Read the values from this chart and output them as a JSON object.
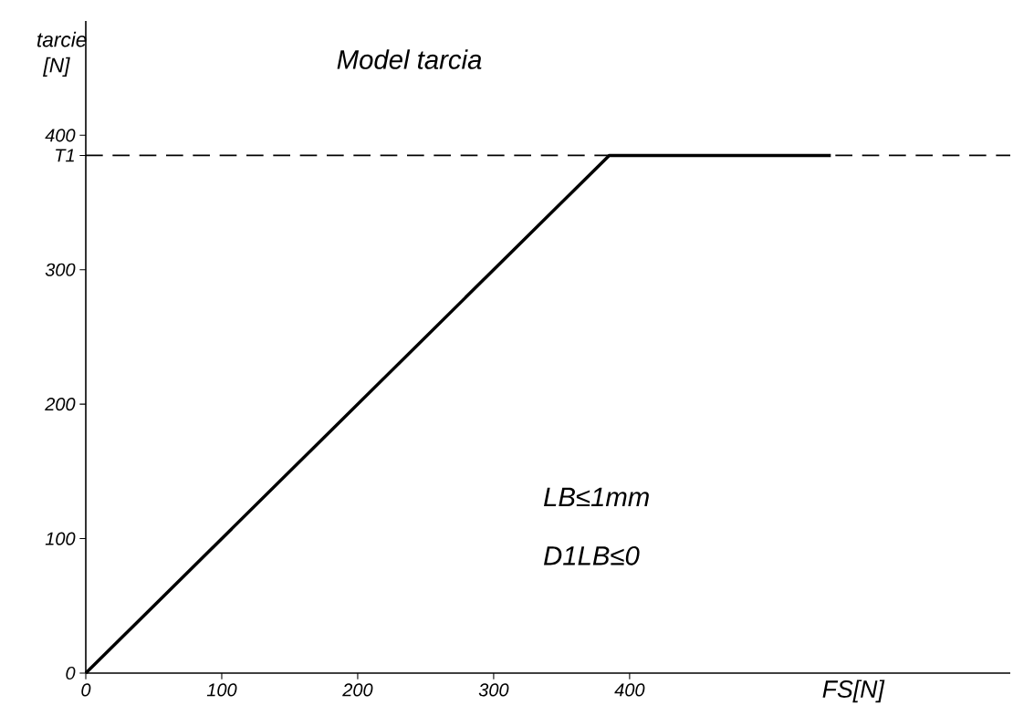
{
  "chart_data": {
    "type": "line",
    "title": "Model tarcia",
    "xlabel": "FS[N]",
    "ylabel": "tarcie [N]",
    "x": [
      0,
      385,
      548
    ],
    "series": [
      {
        "color": "#000000",
        "values": [
          0,
          385,
          385
        ]
      }
    ],
    "xlim": [
      0,
      680
    ],
    "ylim": [
      0,
      485
    ],
    "xticks": [
      0,
      100,
      200,
      300,
      400
    ],
    "yticks": [
      0,
      100,
      200,
      300,
      400,
      {
        "value": 385,
        "label": "T1"
      }
    ],
    "ref_lines": [
      {
        "axis": "y",
        "value": 385,
        "color": "#000000",
        "line_style": "dashed"
      }
    ],
    "annotations": [
      "LB≤1mm",
      "D1LB≤0"
    ]
  }
}
